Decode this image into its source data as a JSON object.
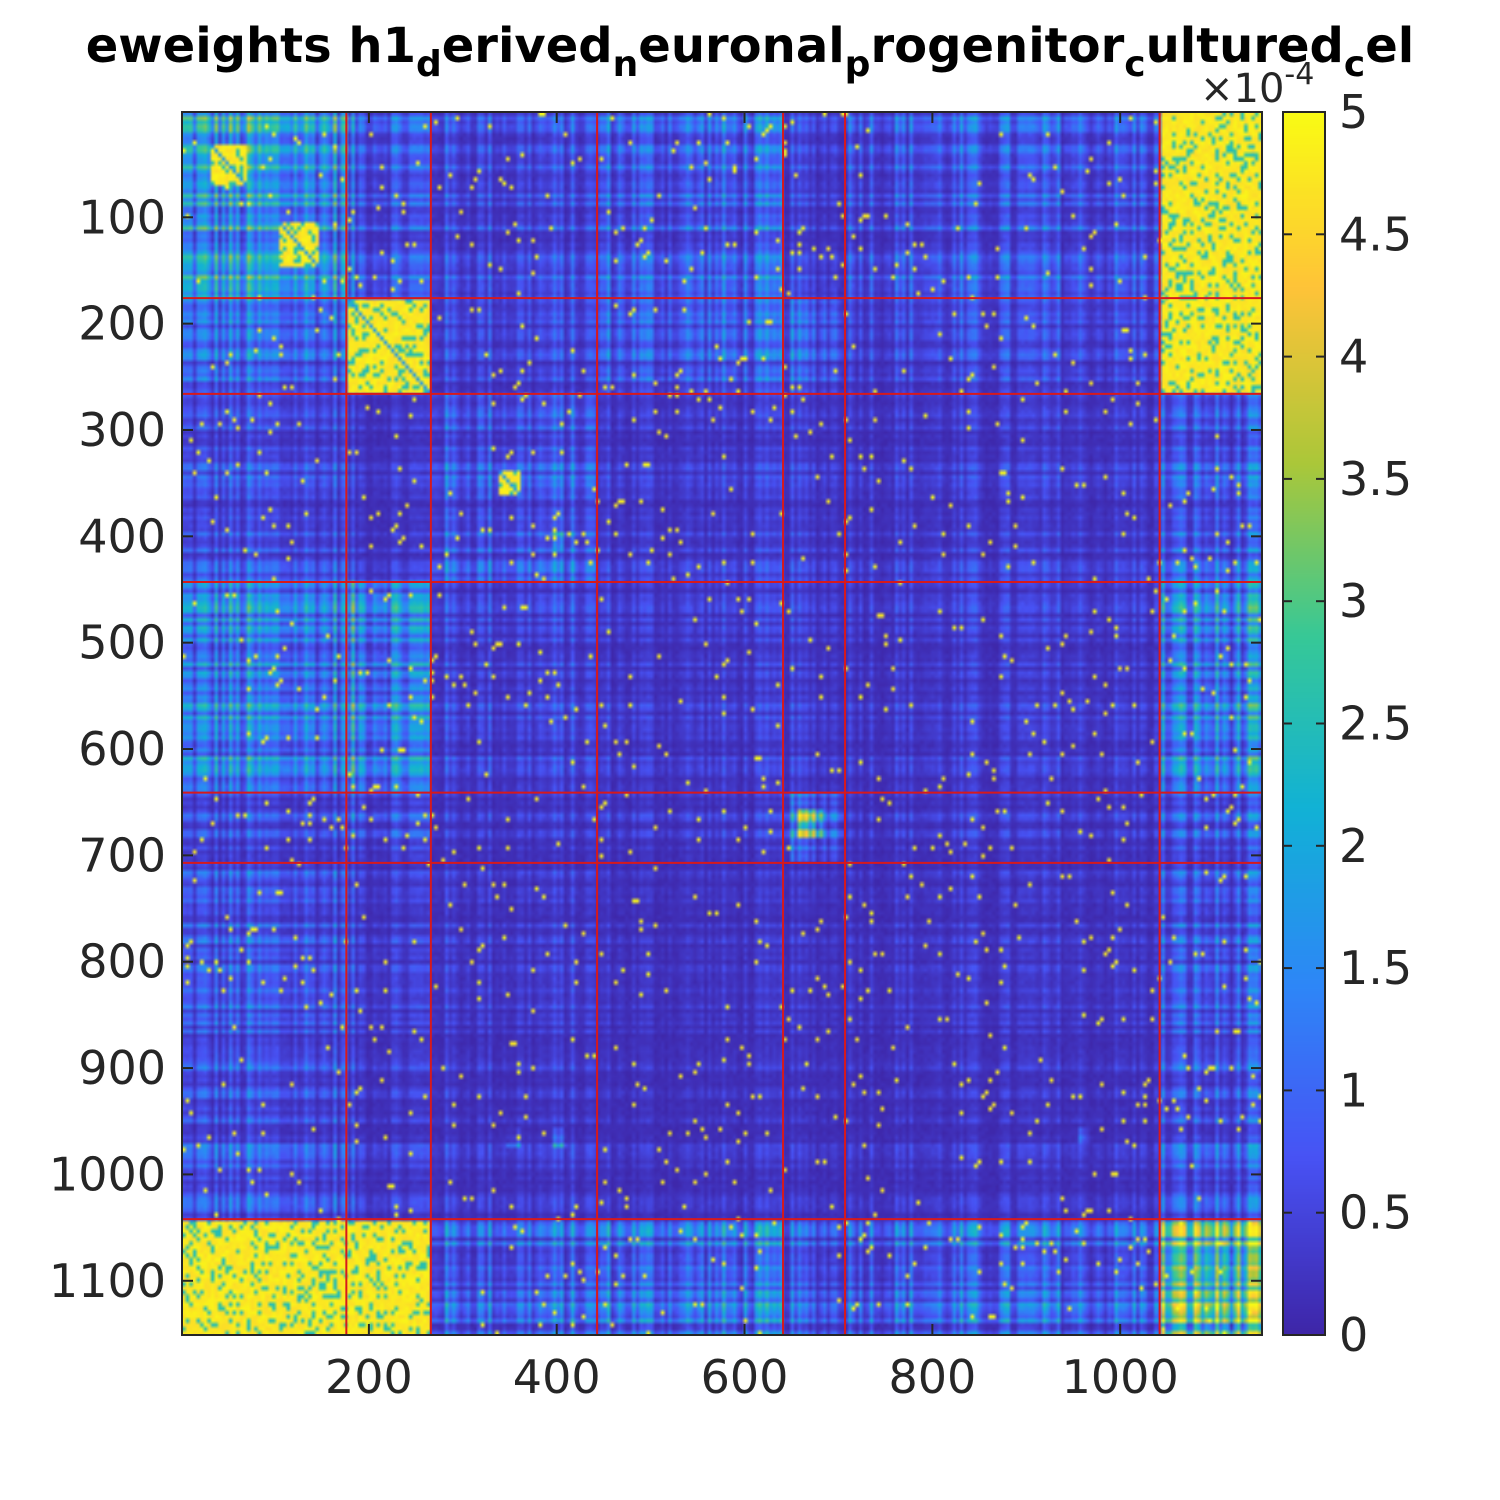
{
  "chart_data": {
    "type": "heatmap",
    "title": {
      "parts": [
        {
          "text": "eweights h1",
          "sub": false
        },
        {
          "text": "d",
          "sub": true
        },
        {
          "text": "erived",
          "sub": false
        },
        {
          "text": "n",
          "sub": true
        },
        {
          "text": "euronal",
          "sub": false
        },
        {
          "text": "p",
          "sub": true
        },
        {
          "text": "rogenitor",
          "sub": false
        },
        {
          "text": "c",
          "sub": true
        },
        {
          "text": "ultured",
          "sub": false
        },
        {
          "text": "c",
          "sub": true
        },
        {
          "text": "el",
          "sub": false
        }
      ]
    },
    "xlim": [
      1,
      1151
    ],
    "ylim": [
      1,
      1151
    ],
    "x_ticks": [
      200,
      400,
      600,
      800,
      1000
    ],
    "y_ticks": [
      100,
      200,
      300,
      400,
      500,
      600,
      700,
      800,
      900,
      1000,
      1100
    ],
    "y_reversed": true,
    "cluster_boundaries": [
      176,
      266,
      443,
      641,
      707,
      1042
    ],
    "colorbar": {
      "range": [
        0,
        5
      ],
      "ticks": [
        "0",
        "0.5",
        "1",
        "1.5",
        "2",
        "2.5",
        "3",
        "3.5",
        "4",
        "4.5",
        "5"
      ],
      "exponent_prefix": "×10",
      "exponent_power": "-4",
      "colormap": "parula"
    },
    "block_mean_level": [
      [
        0.55,
        0.35,
        0.25,
        0.35,
        0.2,
        0.3,
        0.9
      ],
      [
        0.35,
        0.9,
        0.2,
        0.3,
        0.3,
        0.2,
        0.75
      ],
      [
        0.25,
        0.15,
        0.3,
        0.15,
        0.15,
        0.15,
        0.3
      ],
      [
        0.45,
        0.5,
        0.2,
        0.15,
        0.15,
        0.15,
        0.45
      ],
      [
        0.25,
        0.3,
        0.15,
        0.15,
        0.4,
        0.15,
        0.3
      ],
      [
        0.3,
        0.2,
        0.15,
        0.1,
        0.1,
        0.12,
        0.3
      ],
      [
        0.85,
        0.7,
        0.35,
        0.4,
        0.3,
        0.35,
        0.7
      ]
    ],
    "hot_regions": [
      {
        "x": [
          105,
          145
        ],
        "y": [
          105,
          145
        ],
        "level": 1.0
      },
      {
        "x": [
          176,
          266
        ],
        "y": [
          176,
          266
        ],
        "level": 0.95
      },
      {
        "x": [
          338,
          360
        ],
        "y": [
          338,
          360
        ],
        "level": 1.0
      },
      {
        "x": [
          30,
          70
        ],
        "y": [
          30,
          70
        ],
        "level": 0.9
      },
      {
        "x": [
          1042,
          1151
        ],
        "y": [
          1,
          176
        ],
        "level": 0.95
      },
      {
        "x": [
          1,
          176
        ],
        "y": [
          1042,
          1151
        ],
        "level": 0.95
      },
      {
        "x": [
          176,
          266
        ],
        "y": [
          1042,
          1151
        ],
        "level": 0.85
      },
      {
        "x": [
          1042,
          1151
        ],
        "y": [
          176,
          266
        ],
        "level": 0.85
      },
      {
        "x": [
          655,
          685
        ],
        "y": [
          655,
          685
        ],
        "level": 0.7
      },
      {
        "x": [
          395,
          410
        ],
        "y": [
          395,
          410
        ],
        "level": 0.45
      },
      {
        "x": [
          955,
          970
        ],
        "y": [
          955,
          970
        ],
        "level": 0.45
      },
      {
        "x": [
          345,
          360
        ],
        "y": [
          955,
          975
        ],
        "level": 0.4
      },
      {
        "x": [
          395,
          410
        ],
        "y": [
          955,
          975
        ],
        "level": 0.4
      }
    ]
  }
}
